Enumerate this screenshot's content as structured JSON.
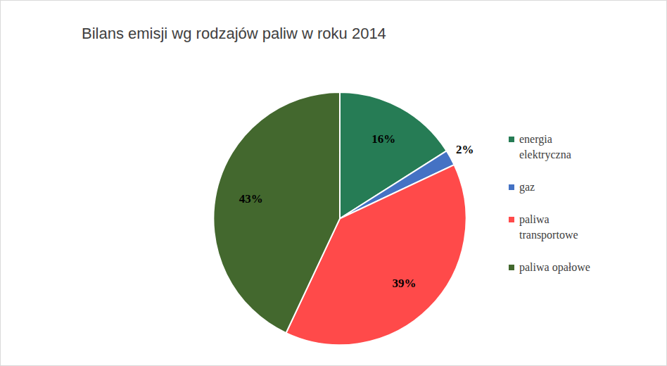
{
  "chart_data": {
    "type": "pie",
    "title": "Bilans emisji wg rodzajów paliw w roku 2014",
    "categories": [
      "energia elektryczna",
      "gaz",
      "paliwa transportowe",
      "paliwa opałowe"
    ],
    "values": [
      16,
      2,
      39,
      43
    ],
    "value_labels": [
      "16%",
      "2%",
      "39%",
      "43%"
    ],
    "colors": [
      "#267c55",
      "#4472c4",
      "#ff4a4a",
      "#43682e"
    ],
    "data_labels": true,
    "legend": "right"
  }
}
